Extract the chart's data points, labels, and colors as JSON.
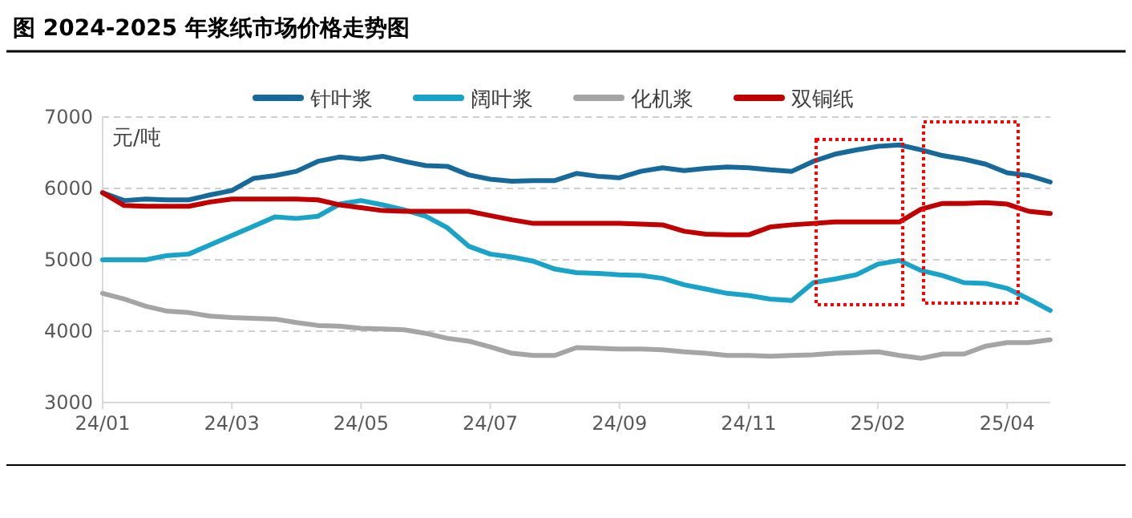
{
  "chart_data": {
    "type": "line",
    "title": "图 2024-2025 年浆纸市场价格走势图",
    "ylabel": "元/吨",
    "categories": [
      "24/01",
      null,
      null,
      null,
      null,
      null,
      "24/03",
      null,
      null,
      null,
      null,
      null,
      "24/05",
      null,
      null,
      null,
      null,
      null,
      "24/07",
      null,
      null,
      null,
      null,
      null,
      "24/09",
      null,
      null,
      null,
      null,
      null,
      "24/11",
      null,
      null,
      null,
      null,
      null,
      "25/02",
      null,
      null,
      null,
      null,
      null,
      "25/04",
      null,
      null
    ],
    "ylim": [
      3000,
      7000
    ],
    "yticks": [
      3000,
      4000,
      5000,
      6000,
      7000
    ],
    "grid": "y",
    "legend": "top",
    "marker": "none",
    "line_style": "solid",
    "series": [
      {
        "name": "针叶浆",
        "color": "#17699a",
        "values": [
          5940,
          5830,
          5850,
          5840,
          5840,
          5910,
          5970,
          6140,
          6180,
          6240,
          6380,
          6440,
          6410,
          6450,
          6380,
          6320,
          6310,
          6190,
          6130,
          6100,
          6110,
          6110,
          6210,
          6170,
          6150,
          6240,
          6290,
          6250,
          6280,
          6300,
          6290,
          6260,
          6240,
          6380,
          6480,
          6540,
          6590,
          6610,
          6540,
          6460,
          6410,
          6340,
          6220,
          6180,
          6090
        ]
      },
      {
        "name": "阔叶浆",
        "color": "#1aa3c8",
        "values": [
          5000,
          5000,
          5000,
          5060,
          5080,
          5210,
          5340,
          5470,
          5600,
          5580,
          5610,
          5780,
          5830,
          5770,
          5700,
          5610,
          5450,
          5190,
          5080,
          5040,
          4980,
          4870,
          4820,
          4810,
          4790,
          4780,
          4740,
          4650,
          4590,
          4530,
          4500,
          4450,
          4430,
          4680,
          4730,
          4790,
          4940,
          4990,
          4850,
          4780,
          4680,
          4670,
          4600,
          4450,
          4290
        ]
      },
      {
        "name": "化机浆",
        "color": "#a5a5a5",
        "values": [
          4530,
          4450,
          4350,
          4280,
          4260,
          4210,
          4190,
          4180,
          4170,
          4120,
          4080,
          4070,
          4040,
          4030,
          4020,
          3970,
          3900,
          3860,
          3780,
          3690,
          3660,
          3660,
          3770,
          3760,
          3750,
          3750,
          3740,
          3710,
          3690,
          3660,
          3660,
          3650,
          3660,
          3670,
          3690,
          3700,
          3710,
          3660,
          3620,
          3680,
          3680,
          3790,
          3840,
          3840,
          3880
        ]
      },
      {
        "name": "双铜纸",
        "color": "#c00000",
        "values": [
          5940,
          5760,
          5750,
          5750,
          5750,
          5810,
          5850,
          5850,
          5850,
          5850,
          5840,
          5770,
          5730,
          5690,
          5680,
          5680,
          5680,
          5680,
          5620,
          5560,
          5510,
          5510,
          5510,
          5510,
          5510,
          5500,
          5490,
          5400,
          5360,
          5350,
          5350,
          5460,
          5490,
          5510,
          5530,
          5530,
          5530,
          5530,
          5710,
          5790,
          5790,
          5800,
          5780,
          5680,
          5650
        ]
      }
    ]
  }
}
